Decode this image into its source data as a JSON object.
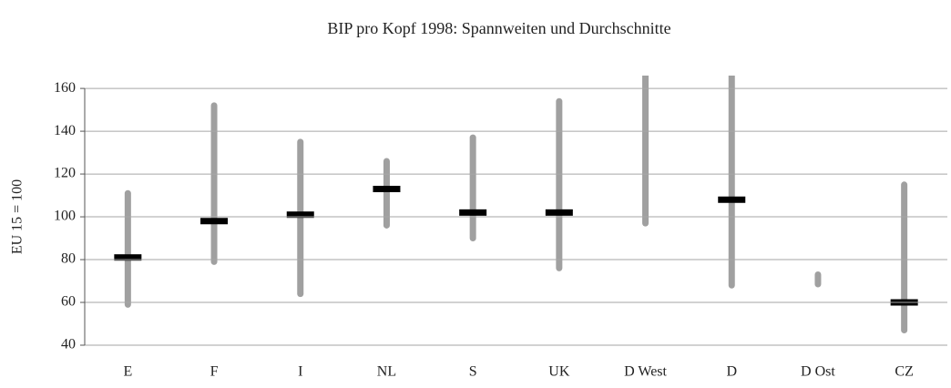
{
  "chart_data": {
    "type": "range",
    "title": "BIP pro Kopf 1998: Spannweiten und Durchschnitte",
    "y_label": "EU 15 = 100",
    "categories": [
      "E",
      "F",
      "I",
      "NL",
      "S",
      "UK",
      "D West",
      "D",
      "D Ost",
      "CZ"
    ],
    "low": [
      59,
      79,
      64,
      96,
      90,
      76,
      97,
      68,
      68.5,
      47
    ],
    "high": [
      111,
      152,
      135,
      126,
      137,
      154,
      180,
      172,
      73,
      115
    ],
    "mean": [
      81,
      98,
      101,
      113,
      102,
      102,
      null,
      108,
      null,
      60
    ],
    "range_color": "#a0a0a0",
    "mean_color": "#000000",
    "ylim": [
      40,
      166
    ],
    "yticks": [
      40,
      60,
      80,
      100,
      120,
      140,
      160
    ],
    "grid": true
  }
}
